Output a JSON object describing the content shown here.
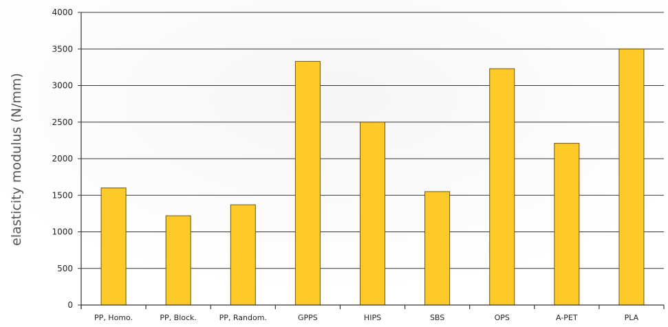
{
  "chart_data": {
    "type": "bar",
    "ylabel": "elasticity modulus (N/mm)",
    "xlabel": "",
    "title": "",
    "categories": [
      "PP, Homo.",
      "PP, Block.",
      "PP, Random.",
      "GPPS",
      "HIPS",
      "SBS",
      "OPS",
      "A-PET",
      "PLA"
    ],
    "values": [
      1600,
      1220,
      1370,
      3330,
      2500,
      1550,
      3230,
      2210,
      3500
    ],
    "ylim": [
      0,
      4000
    ],
    "yticks": [
      0,
      500,
      1000,
      1500,
      2000,
      2500,
      3000,
      3500,
      4000
    ],
    "grid": true,
    "legend": "none",
    "colors": {
      "bar_fill": "#FDCA2A",
      "bar_stroke": "#6B5410",
      "grid": "#333333",
      "axis": "#333333"
    }
  }
}
